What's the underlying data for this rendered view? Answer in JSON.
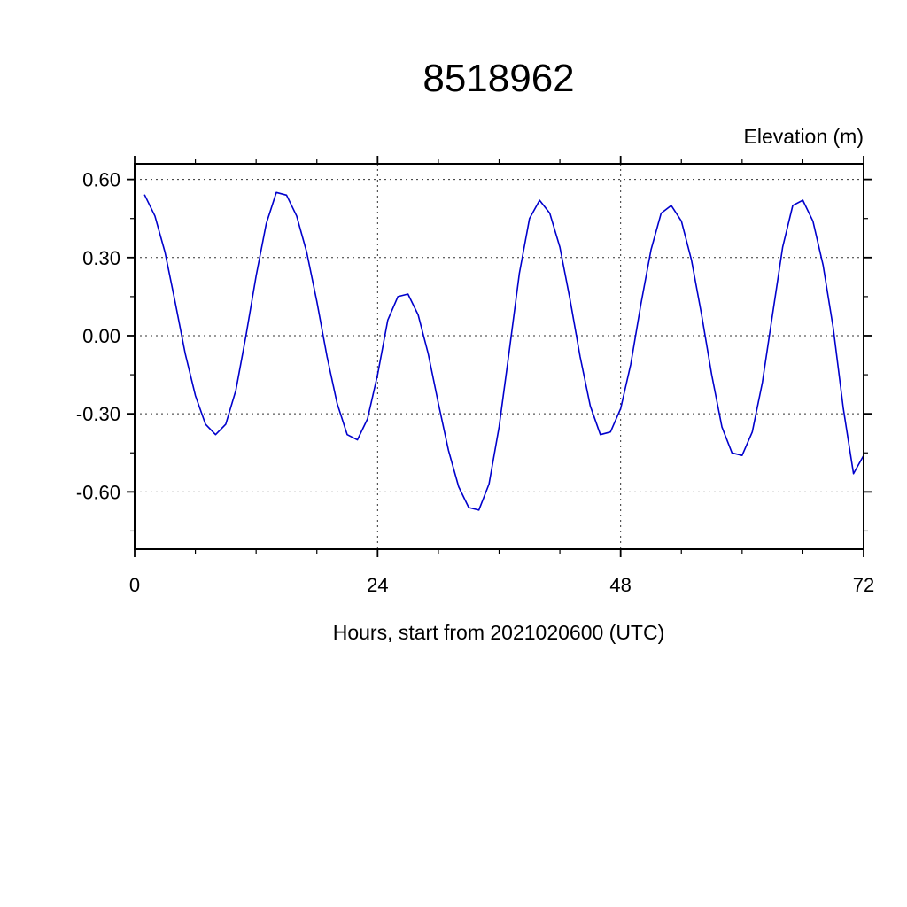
{
  "page": {
    "background": "#ffffff"
  },
  "chart_data": {
    "type": "line",
    "title": "8518962",
    "ylabel": "Elevation (m)",
    "xlabel": "Hours, start from 2021020600 (UTC)",
    "legend": "none",
    "grid": "dashed",
    "grid_color": "#333333",
    "frame_color": "#000000",
    "line_color": "#0000cc",
    "xlim": [
      0,
      72
    ],
    "ylim": [
      -0.82,
      0.66
    ],
    "x_major_ticks": [
      0,
      24,
      48,
      72
    ],
    "x_tick_labels": [
      "0",
      "24",
      "48",
      "72"
    ],
    "x_minor_ticks": [
      6,
      12,
      18,
      30,
      36,
      42,
      54,
      60,
      66
    ],
    "x_gridlines": [
      24,
      48
    ],
    "y_major_ticks": [
      0.6,
      0.3,
      0.0,
      -0.3,
      -0.6
    ],
    "y_tick_labels": [
      "0.60",
      "0.30",
      "0.00",
      "-0.30",
      "-0.60"
    ],
    "y_minor_ticks": [
      0.45,
      0.15,
      -0.15,
      -0.45,
      -0.75
    ],
    "y_gridlines": [
      0.6,
      0.3,
      0.0,
      -0.3,
      -0.6
    ],
    "series": [
      {
        "name": "elevation",
        "x": [
          1,
          2,
          3,
          4,
          5,
          6,
          7,
          8,
          9,
          10,
          11,
          12,
          13,
          14,
          15,
          16,
          17,
          18,
          19,
          20,
          21,
          22,
          23,
          24,
          25,
          26,
          27,
          28,
          29,
          30,
          31,
          32,
          33,
          34,
          35,
          36,
          37,
          38,
          39,
          40,
          41,
          42,
          43,
          44,
          45,
          46,
          47,
          48,
          49,
          50,
          51,
          52,
          53,
          54,
          55,
          56,
          57,
          58,
          59,
          60,
          61,
          62,
          63,
          64,
          65,
          66,
          67,
          68,
          69,
          70,
          71,
          72
        ],
        "y": [
          0.54,
          0.46,
          0.32,
          0.13,
          -0.07,
          -0.23,
          -0.34,
          -0.38,
          -0.34,
          -0.21,
          0.0,
          0.23,
          0.43,
          0.55,
          0.54,
          0.46,
          0.32,
          0.13,
          -0.08,
          -0.26,
          -0.38,
          -0.4,
          -0.32,
          -0.15,
          0.06,
          0.15,
          0.16,
          0.08,
          -0.07,
          -0.26,
          -0.44,
          -0.58,
          -0.66,
          -0.67,
          -0.57,
          -0.35,
          -0.06,
          0.24,
          0.45,
          0.52,
          0.47,
          0.34,
          0.14,
          -0.08,
          -0.27,
          -0.38,
          -0.37,
          -0.28,
          -0.11,
          0.12,
          0.33,
          0.47,
          0.5,
          0.44,
          0.29,
          0.08,
          -0.15,
          -0.35,
          -0.45,
          -0.46,
          -0.37,
          -0.18,
          0.08,
          0.34,
          0.5,
          0.52,
          0.44,
          0.27,
          0.03,
          -0.28,
          -0.53,
          -0.46
        ]
      }
    ]
  }
}
